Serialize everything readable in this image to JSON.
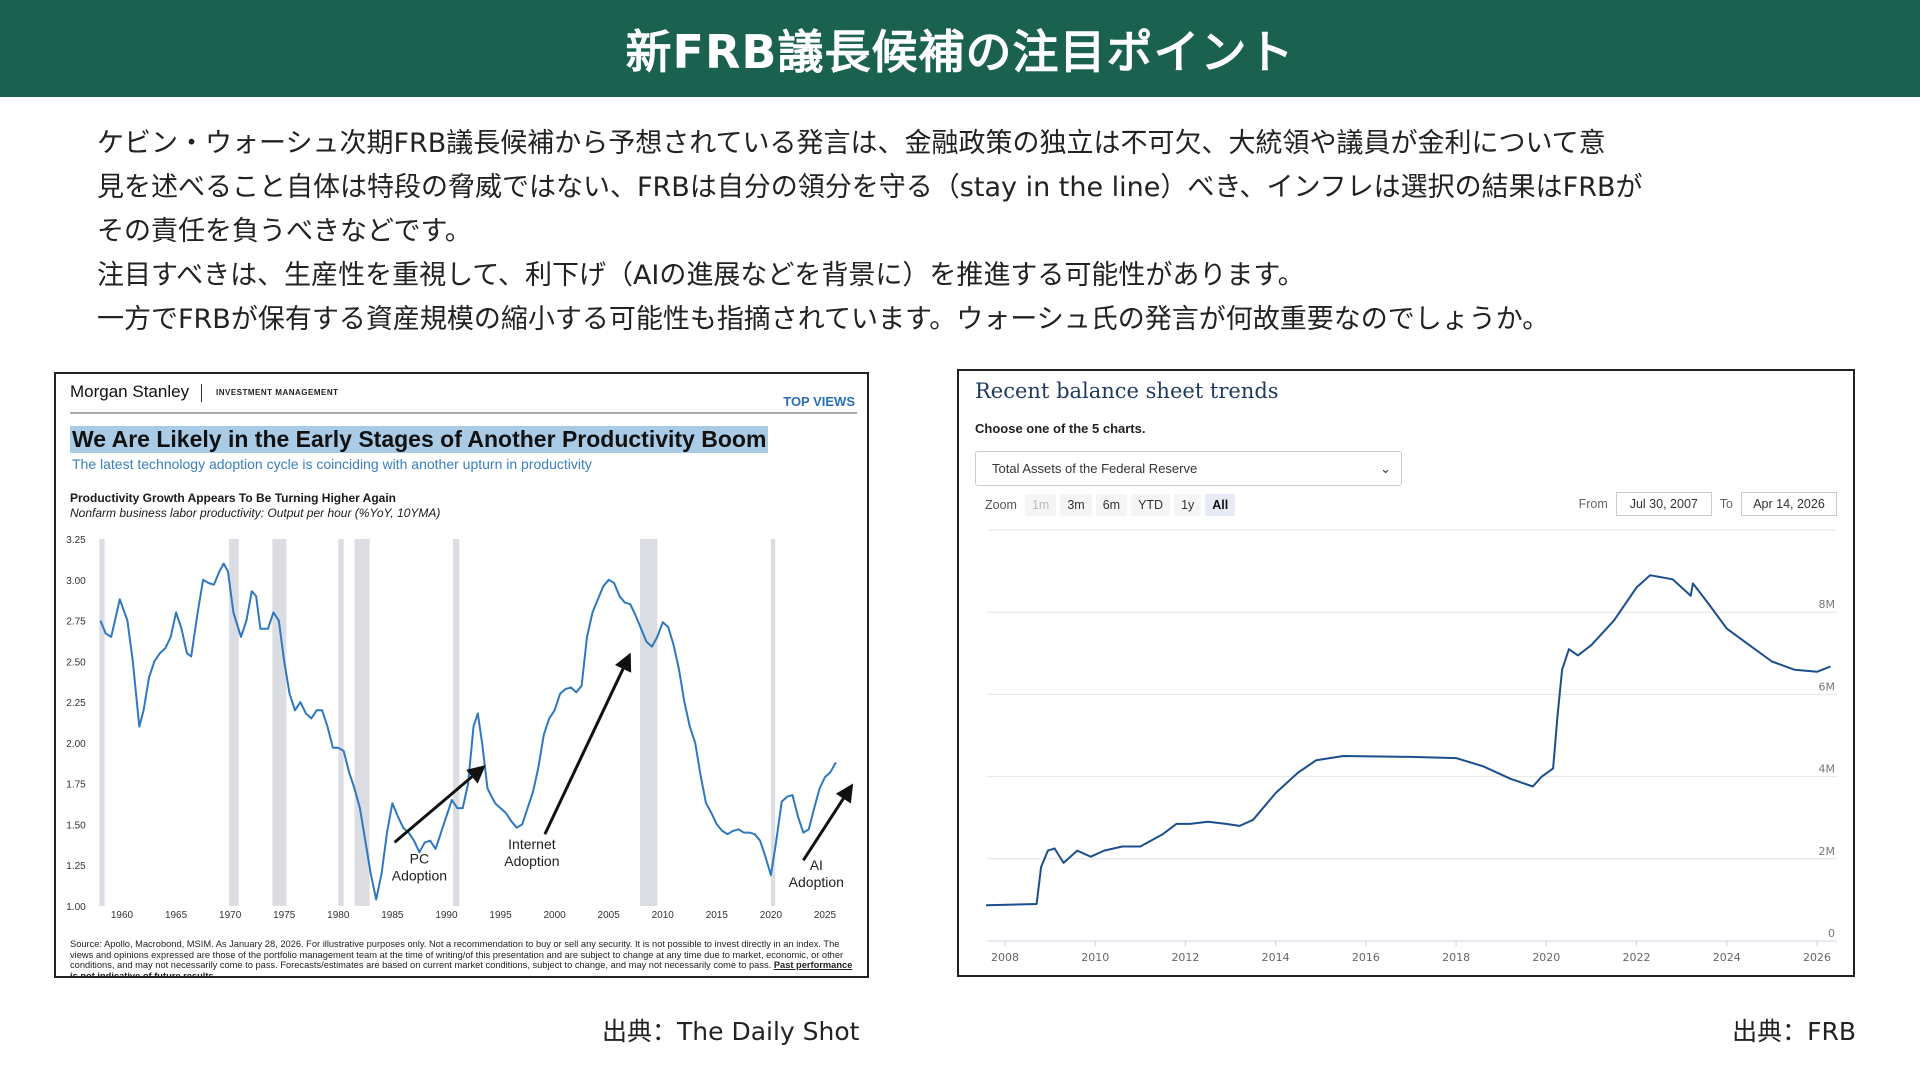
{
  "header": {
    "title": "新FRB議長候補の注目ポイント"
  },
  "body": {
    "lines": [
      "ケビン・ウォーシュ次期FRB議長候補から予想されている発言は、金融政策の独立は不可欠、大統領や議員が金利について意",
      "見を述べること自体は特段の脅威ではない、FRBは自分の領分を守る（stay in the line）べき、インフレは選択の結果はFRBが",
      "その責任を負うべきなどです。",
      "注目すべきは、生産性を重視して、利下げ（AIの進展などを背景に）を推進する可能性があります。",
      "一方でFRBが保有する資産規模の縮小する可能性も指摘されています。ウォーシュ氏の発言が何故重要なのでしょうか。"
    ]
  },
  "left_panel": {
    "brand": "Morgan Stanley",
    "division": "INVESTMENT MANAGEMENT",
    "tag": "TOP VIEWS",
    "headline": "We Are Likely in the Early Stages of Another Productivity Boom",
    "subheadline": "The latest technology adoption cycle is coinciding with another upturn in productivity",
    "source_text": "Source: Apollo, Macrobond, MSIM. As January 28, 2026. For illustrative purposes only. Not a recommendation to buy or sell any security. It is not possible to invest directly in an index. The views and opinions expressed are those of the portfolio management team at the time of writing/of this presentation and are subject to change at any time due to market, economic, or other conditions, and may not necessarily come to pass.  Forecasts/estimates are based on current market conditions, subject to change, and may not necessarily come to pass.",
    "source_bold": "Past performance is not indicative of future results.",
    "caption": "出典：The Daily Shot"
  },
  "right_panel": {
    "title": "Recent balance sheet trends",
    "choose_label": "Choose one of the 5 charts.",
    "select_value": "Total Assets of the Federal Reserve",
    "zoom_label": "Zoom",
    "zoom_buttons": [
      "1m",
      "3m",
      "6m",
      "YTD",
      "1y",
      "All"
    ],
    "zoom_selected": "All",
    "from_label": "From",
    "from_value": "Jul 30, 2007",
    "to_label": "To",
    "to_value": "Apr 14, 2026",
    "caption": "出典：FRB"
  },
  "chart_data": [
    {
      "type": "line",
      "title": "Productivity Growth Appears To Be Turning Higher Again",
      "subtitle": "Nonfarm business labor productivity: Output per hour (%YoY, 10YMA)",
      "xlim": [
        1958,
        2027.5
      ],
      "ylim": [
        1.0,
        3.25
      ],
      "xticks": [
        "1960",
        "1965",
        "1970",
        "1975",
        "1980",
        "1985",
        "1990",
        "1995",
        "2000",
        "2005",
        "2010",
        "2015",
        "2020",
        "2025"
      ],
      "yticks": [
        "1.00",
        "1.25",
        "1.50",
        "1.75",
        "2.00",
        "2.25",
        "2.50",
        "2.75",
        "3.00",
        "3.25"
      ],
      "color": "#2f78c0",
      "recessions": [
        [
          1957.9,
          1958.4
        ],
        [
          1969.9,
          1970.8
        ],
        [
          1973.9,
          1975.2
        ],
        [
          1980.0,
          1980.5
        ],
        [
          1981.5,
          1982.9
        ],
        [
          1990.6,
          1991.2
        ],
        [
          2007.9,
          2009.5
        ],
        [
          2020.0,
          2020.4
        ]
      ],
      "x": [
        1958,
        1958.5,
        1959,
        1959.8,
        1960.5,
        1961,
        1961.6,
        1962,
        1962.5,
        1963,
        1963.5,
        1964,
        1964.5,
        1965,
        1965.5,
        1966,
        1966.4,
        1967,
        1967.5,
        1968,
        1968.5,
        1969,
        1969.4,
        1969.8,
        1970.3,
        1971,
        1971.5,
        1972,
        1972.4,
        1972.8,
        1973.5,
        1974,
        1974.5,
        1975,
        1975.5,
        1976,
        1976.5,
        1977,
        1977.5,
        1978,
        1978.5,
        1979,
        1979.5,
        1980,
        1980.5,
        1981,
        1981.5,
        1982,
        1982.5,
        1983,
        1983.5,
        1984,
        1984.5,
        1985,
        1985.5,
        1986,
        1986.5,
        1987,
        1987.5,
        1988,
        1988.5,
        1989,
        1989.5,
        1990,
        1990.5,
        1991,
        1991.5,
        1992,
        1992.5,
        1992.9,
        1993.3,
        1993.8,
        1994.5,
        1995,
        1995.5,
        1996,
        1996.5,
        1997,
        1997.5,
        1998,
        1998.5,
        1999,
        1999.5,
        2000,
        2000.5,
        2001,
        2001.5,
        2002,
        2002.5,
        2003,
        2003.5,
        2004,
        2004.5,
        2005,
        2005.5,
        2006,
        2006.5,
        2007,
        2007.5,
        2008,
        2008.5,
        2009,
        2009.5,
        2010,
        2010.5,
        2011,
        2011.5,
        2012,
        2012.5,
        2013,
        2013.5,
        2014,
        2014.5,
        2015,
        2015.5,
        2016,
        2016.5,
        2017,
        2017.5,
        2018,
        2018.5,
        2019,
        2019.5,
        2020,
        2020.5,
        2021,
        2021.5,
        2022,
        2022.5,
        2023,
        2023.5,
        2024,
        2024.5,
        2025,
        2025.5,
        2026
      ],
      "y": [
        2.75,
        2.67,
        2.65,
        2.88,
        2.75,
        2.5,
        2.1,
        2.2,
        2.4,
        2.5,
        2.55,
        2.58,
        2.65,
        2.8,
        2.7,
        2.55,
        2.53,
        2.8,
        3.0,
        2.98,
        2.97,
        3.05,
        3.1,
        3.05,
        2.8,
        2.65,
        2.75,
        2.93,
        2.9,
        2.7,
        2.7,
        2.8,
        2.75,
        2.5,
        2.3,
        2.2,
        2.25,
        2.18,
        2.15,
        2.2,
        2.2,
        2.1,
        1.97,
        1.97,
        1.95,
        1.82,
        1.72,
        1.6,
        1.4,
        1.2,
        1.04,
        1.2,
        1.45,
        1.63,
        1.55,
        1.48,
        1.45,
        1.4,
        1.33,
        1.39,
        1.4,
        1.35,
        1.45,
        1.55,
        1.65,
        1.6,
        1.6,
        1.75,
        2.1,
        2.18,
        2.0,
        1.72,
        1.63,
        1.6,
        1.57,
        1.52,
        1.48,
        1.5,
        1.6,
        1.7,
        1.85,
        2.05,
        2.15,
        2.2,
        2.3,
        2.33,
        2.34,
        2.31,
        2.35,
        2.65,
        2.8,
        2.88,
        2.96,
        3.0,
        2.98,
        2.9,
        2.86,
        2.85,
        2.78,
        2.7,
        2.62,
        2.59,
        2.65,
        2.74,
        2.71,
        2.6,
        2.45,
        2.25,
        2.1,
        2.0,
        1.8,
        1.63,
        1.57,
        1.5,
        1.46,
        1.44,
        1.46,
        1.47,
        1.45,
        1.45,
        1.44,
        1.4,
        1.3,
        1.19,
        1.4,
        1.64,
        1.67,
        1.68,
        1.55,
        1.45,
        1.47,
        1.6,
        1.72,
        1.79,
        1.82,
        1.88
      ],
      "annotations": [
        {
          "lines": [
            "PC",
            "Adoption"
          ],
          "x": 1987.5,
          "y": 1.26,
          "arrow_from": [
            1985.2,
            1.39
          ],
          "arrow_to": [
            1993.2,
            1.84
          ]
        },
        {
          "lines": [
            "Internet",
            "Adoption"
          ],
          "x": 1997.9,
          "y": 1.35,
          "arrow_from": [
            1999.1,
            1.44
          ],
          "arrow_to": [
            2006.8,
            2.52
          ]
        },
        {
          "lines": [
            "AI",
            "Adoption"
          ],
          "x": 2024.2,
          "y": 1.22,
          "arrow_from": [
            2023.0,
            1.28
          ],
          "arrow_to": [
            2027.3,
            1.72
          ]
        }
      ]
    },
    {
      "type": "line",
      "title": "Total Assets of the Federal Reserve",
      "xlim": [
        2007.55,
        2026.35
      ],
      "ylim": [
        0,
        10
      ],
      "xticks": [
        "2008",
        "2010",
        "2012",
        "2014",
        "2016",
        "2018",
        "2020",
        "2022",
        "2024",
        "2026"
      ],
      "yticks": [
        "0",
        "2M",
        "4M",
        "6M",
        "8M"
      ],
      "color": "#1b4f8c",
      "x": [
        2007.58,
        2008.7,
        2008.8,
        2008.95,
        2009.1,
        2009.3,
        2009.6,
        2009.9,
        2010.2,
        2010.6,
        2011,
        2011.5,
        2011.8,
        2012.1,
        2012.5,
        2012.9,
        2013.2,
        2013.5,
        2014,
        2014.5,
        2014.9,
        2015.5,
        2017,
        2018,
        2018.6,
        2019.2,
        2019.7,
        2019.9,
        2020.15,
        2020.25,
        2020.35,
        2020.5,
        2020.7,
        2021,
        2021.5,
        2022,
        2022.3,
        2022.8,
        2023.2,
        2023.25,
        2023.6,
        2024,
        2024.5,
        2025,
        2025.5,
        2026,
        2026.3
      ],
      "y": [
        0.87,
        0.9,
        1.8,
        2.2,
        2.25,
        1.9,
        2.2,
        2.05,
        2.2,
        2.3,
        2.3,
        2.6,
        2.85,
        2.85,
        2.9,
        2.85,
        2.8,
        2.95,
        3.6,
        4.1,
        4.4,
        4.5,
        4.48,
        4.45,
        4.25,
        3.95,
        3.76,
        4.0,
        4.2,
        5.5,
        6.6,
        7.1,
        6.95,
        7.2,
        7.8,
        8.6,
        8.9,
        8.8,
        8.4,
        8.7,
        8.2,
        7.6,
        7.2,
        6.8,
        6.6,
        6.55,
        6.68
      ]
    }
  ]
}
